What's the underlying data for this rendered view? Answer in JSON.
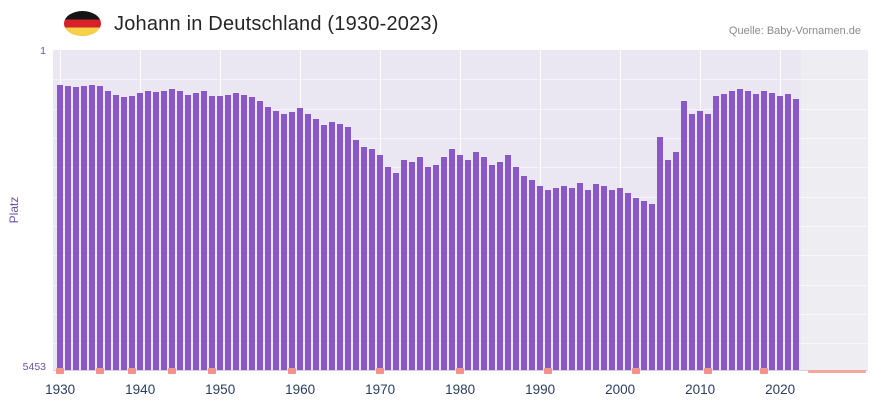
{
  "header": {
    "title": "Johann in Deutschland (1930-2023)",
    "source": "Quelle: Baby-Vornamen.de",
    "flag_icon": "german-flag",
    "flag_colors": [
      "#151515",
      "#d6202a",
      "#f8d147"
    ]
  },
  "chart_data": {
    "type": "bar",
    "title": "Johann in Deutschland (1930-2023)",
    "ylabel": "Platz",
    "xlabel": "",
    "y_axis": {
      "min": 1,
      "max": 5453,
      "inverted": true,
      "top_tick": "1",
      "bottom_tick": "5453"
    },
    "x_ticks": [
      "1930",
      "1940",
      "1950",
      "1960",
      "1970",
      "1980",
      "1990",
      "2000",
      "2010",
      "2020"
    ],
    "x": [
      1930,
      1931,
      1932,
      1933,
      1934,
      1935,
      1936,
      1937,
      1938,
      1939,
      1940,
      1941,
      1942,
      1943,
      1944,
      1945,
      1946,
      1947,
      1948,
      1949,
      1950,
      1951,
      1952,
      1953,
      1954,
      1955,
      1956,
      1957,
      1958,
      1959,
      1960,
      1961,
      1962,
      1963,
      1964,
      1965,
      1966,
      1967,
      1968,
      1969,
      1970,
      1971,
      1972,
      1973,
      1974,
      1975,
      1976,
      1977,
      1978,
      1979,
      1980,
      1981,
      1982,
      1983,
      1984,
      1985,
      1986,
      1987,
      1988,
      1989,
      1990,
      1991,
      1992,
      1993,
      1994,
      1995,
      1996,
      1997,
      1998,
      1999,
      2000,
      2001,
      2002,
      2003,
      2004,
      2005,
      2006,
      2007,
      2008,
      2009,
      2010,
      2011,
      2012,
      2013,
      2014,
      2015,
      2016,
      2017,
      2018,
      2019,
      2020,
      2021,
      2022
    ],
    "values": [
      600,
      610,
      625,
      605,
      595,
      615,
      700,
      760,
      795,
      780,
      730,
      700,
      712,
      695,
      668,
      700,
      760,
      728,
      700,
      790,
      778,
      760,
      730,
      762,
      800,
      868,
      975,
      1040,
      1092,
      1060,
      992,
      1095,
      1180,
      1270,
      1220,
      1255,
      1308,
      1530,
      1650,
      1692,
      1790,
      2000,
      2088,
      1880,
      1915,
      1830,
      2000,
      1962,
      1830,
      1690,
      1790,
      1880,
      1740,
      1830,
      1962,
      1915,
      1790,
      2000,
      2140,
      2210,
      2318,
      2388,
      2350,
      2318,
      2350,
      2265,
      2388,
      2282,
      2318,
      2388,
      2350,
      2440,
      2525,
      2578,
      2615,
      1480,
      1880,
      1740,
      868,
      1095,
      1045,
      1095,
      785,
      750,
      695,
      660,
      695,
      750,
      695,
      730,
      785,
      750,
      835
    ],
    "marker_years": [
      1930,
      1935,
      1939,
      1944,
      1949,
      1959,
      1970,
      1980,
      1991,
      2002,
      2011,
      2018
    ],
    "no_data_region_after": 2022,
    "colors": {
      "bar": "#8a57c8",
      "plot_bg": "#eae6f2",
      "nodata_bg": "#eeedf2",
      "grid": "#ffffff",
      "marker": "#f2938a",
      "rank_text": "#6b52a8",
      "year_text": "#2a3f5f"
    }
  }
}
